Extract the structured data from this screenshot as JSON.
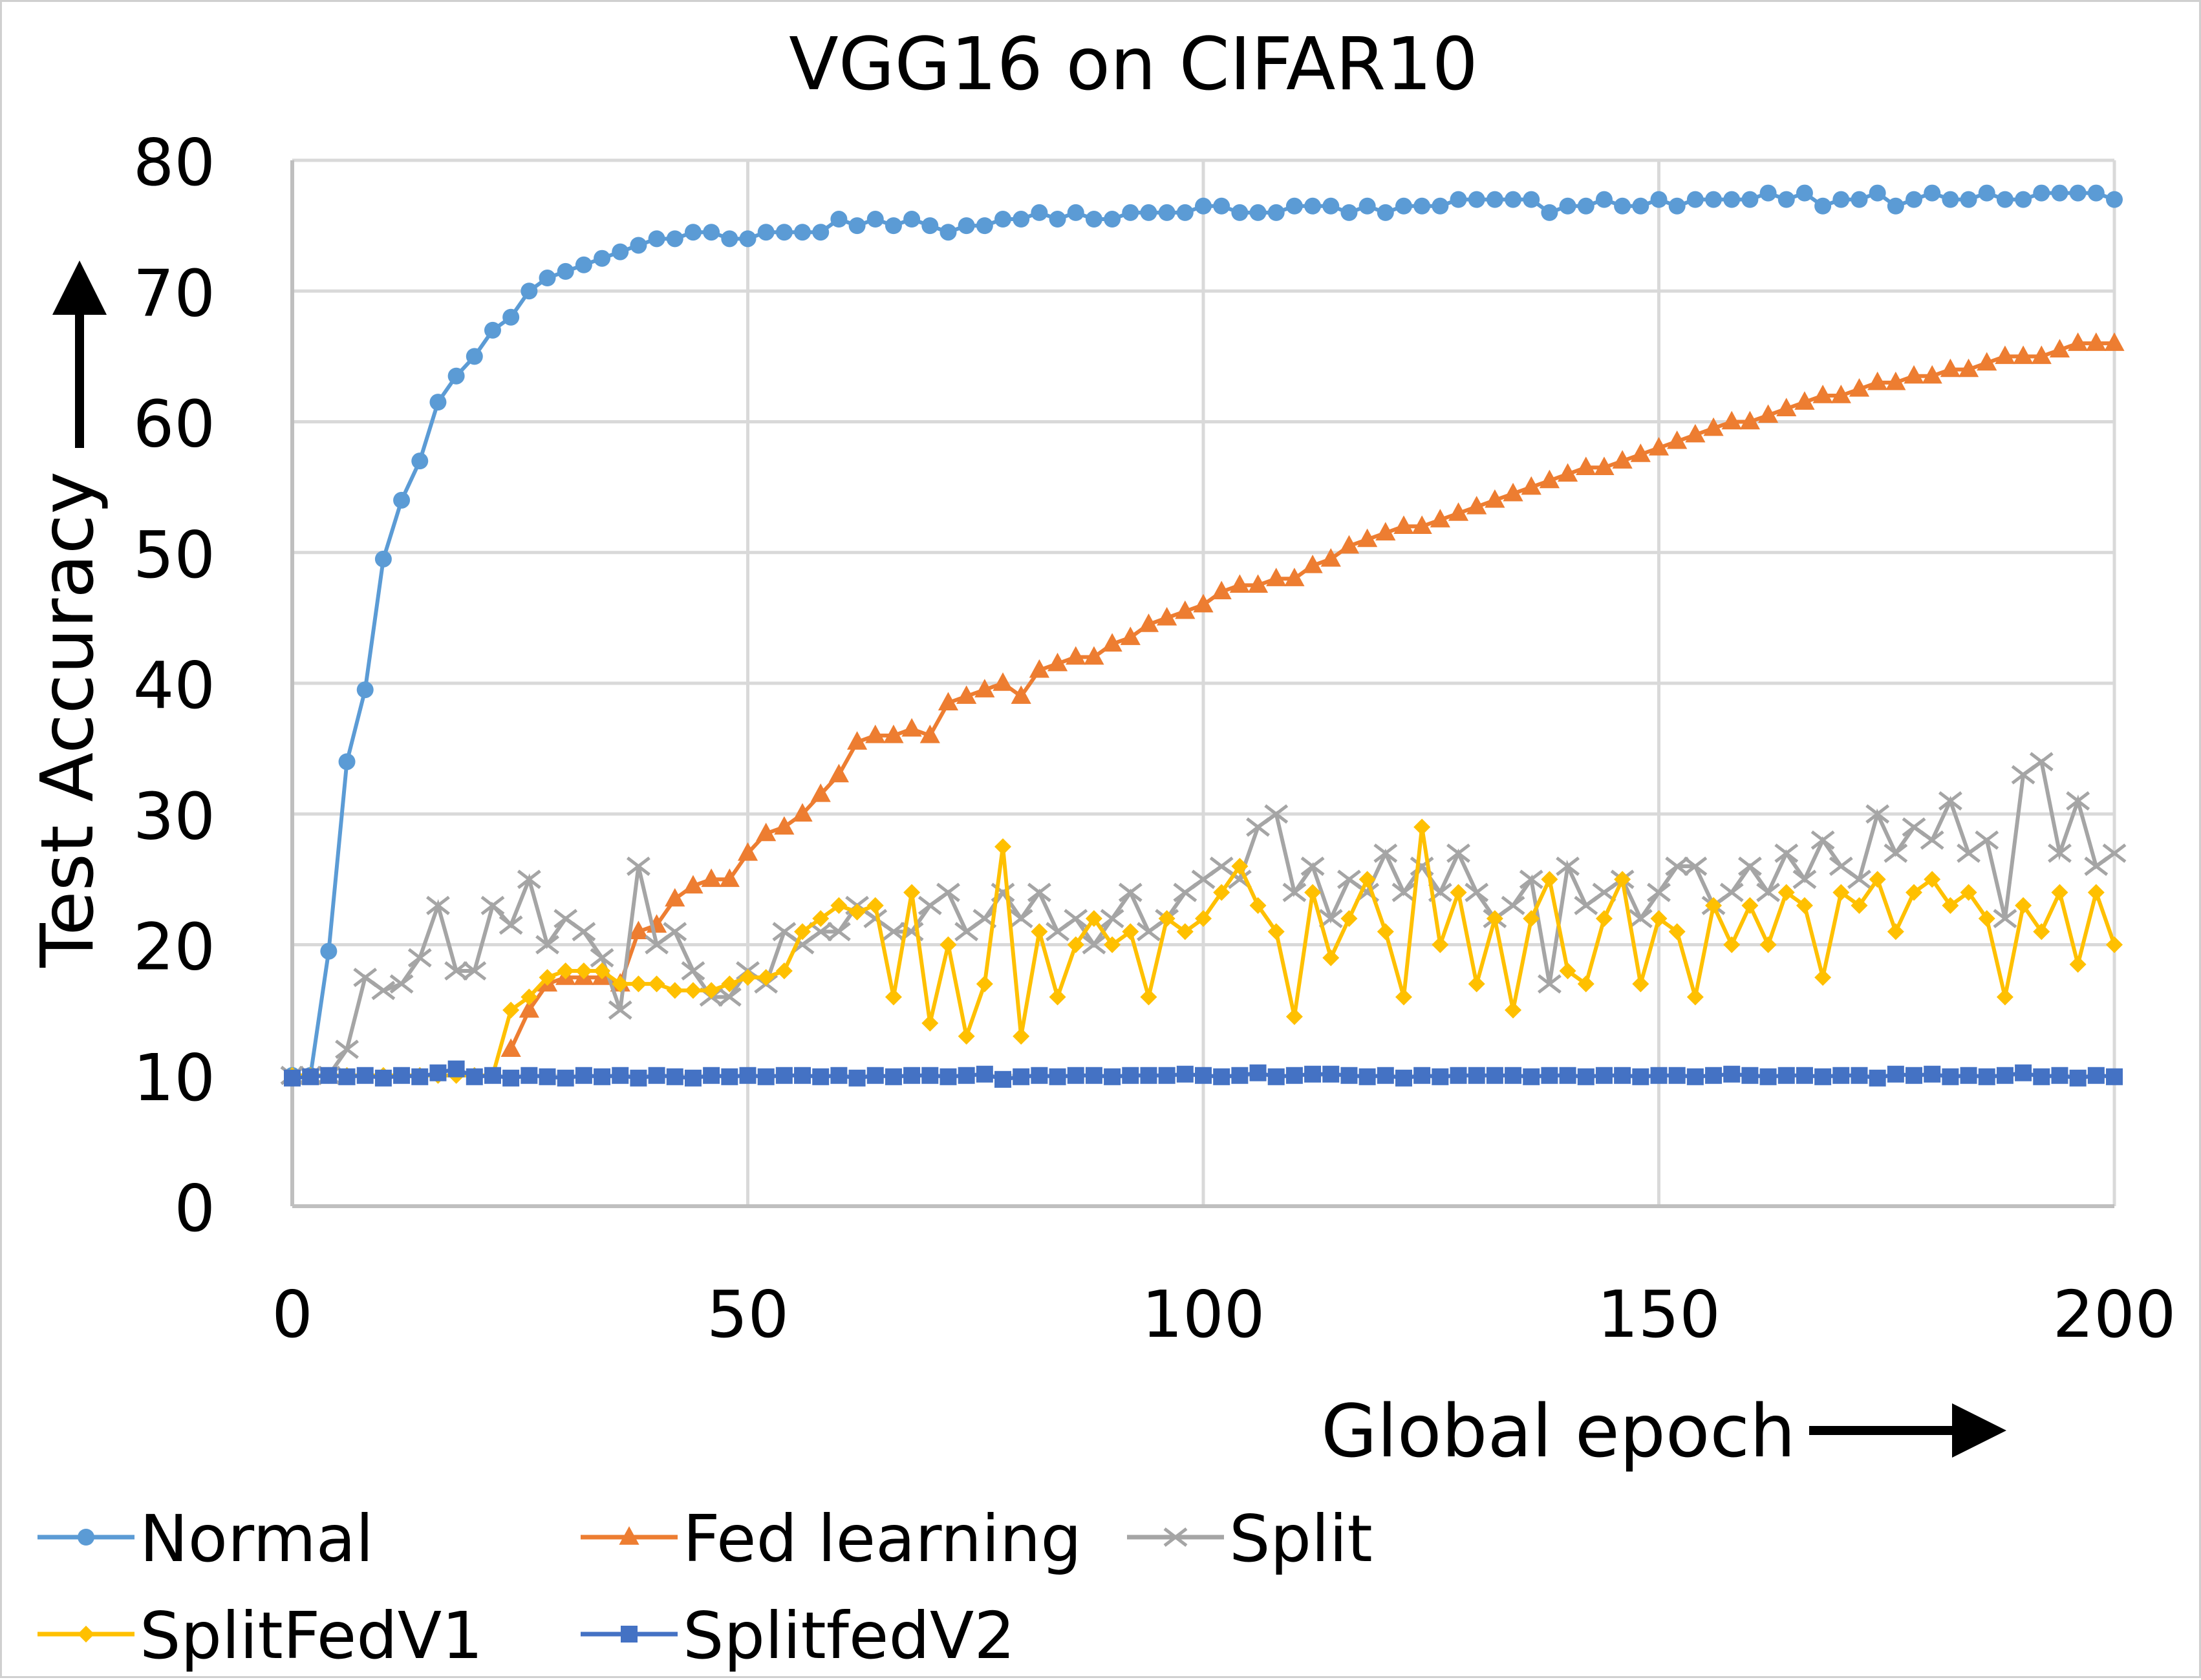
{
  "chart_data": {
    "type": "line",
    "title": "VGG16 on CIFAR10",
    "xlabel": "Global epoch",
    "ylabel": "Test Accuracy",
    "xlim": [
      0,
      200
    ],
    "ylim": [
      0,
      80
    ],
    "xticks": [
      "0",
      "50",
      "100",
      "150",
      "200"
    ],
    "yticks": [
      "0",
      "10",
      "20",
      "30",
      "40",
      "50",
      "60",
      "70",
      "80"
    ],
    "grid": true,
    "legend_position": "bottom",
    "x_step": 2,
    "series": [
      {
        "name": "Normal",
        "color": "#5b9bd5",
        "marker": "circle",
        "values": [
          10,
          10,
          19.5,
          34,
          39.5,
          49.5,
          54,
          57,
          61.5,
          63.5,
          65,
          67,
          68,
          70,
          71,
          71.5,
          72,
          72.5,
          73,
          73.5,
          74,
          74,
          74.5,
          74.5,
          74,
          74,
          74.5,
          74.5,
          74.5,
          74.5,
          75.5,
          75,
          75.5,
          75,
          75.5,
          75,
          74.5,
          75,
          75,
          75.5,
          75.5,
          76,
          75.5,
          76,
          75.5,
          75.5,
          76,
          76,
          76,
          76,
          76.5,
          76.5,
          76,
          76,
          76,
          76.5,
          76.5,
          76.5,
          76,
          76.5,
          76,
          76.5,
          76.5,
          76.5,
          77,
          77,
          77,
          77,
          77,
          76,
          76.5,
          76.5,
          77,
          76.5,
          76.5,
          77,
          76.5,
          77,
          77,
          77,
          77,
          77.5,
          77,
          77.5,
          76.5,
          77,
          77,
          77.5,
          76.5,
          77,
          77.5,
          77,
          77,
          77.5,
          77,
          77,
          77.5,
          77.5,
          77.5,
          77.5,
          77
        ]
      },
      {
        "name": "Fed learning",
        "color": "#ed7d31",
        "marker": "triangle",
        "values": [
          null,
          null,
          null,
          null,
          null,
          null,
          null,
          null,
          null,
          null,
          null,
          null,
          12,
          15,
          17,
          17.5,
          17.5,
          17.5,
          17,
          21,
          21.5,
          23.5,
          24.5,
          25,
          25,
          27,
          28.5,
          29,
          30,
          31.5,
          33,
          35.5,
          36,
          36,
          36.5,
          36,
          38.5,
          39,
          39.5,
          40,
          39,
          41,
          41.5,
          42,
          42,
          43,
          43.5,
          44.5,
          45,
          45.5,
          46,
          47,
          47.5,
          47.5,
          48,
          48,
          49,
          49.5,
          50.5,
          51,
          51.5,
          52,
          52,
          52.5,
          53,
          53.5,
          54,
          54.5,
          55,
          55.5,
          56,
          56.5,
          56.5,
          57,
          57.5,
          58,
          58.5,
          59,
          59.5,
          60,
          60,
          60.5,
          61,
          61.5,
          62,
          62,
          62.5,
          63,
          63,
          63.5,
          63.5,
          64,
          64,
          64.5,
          65,
          65,
          65,
          65.5,
          66,
          66,
          66
        ]
      },
      {
        "name": "Split",
        "color": "#a5a5a5",
        "marker": "x",
        "values": [
          10,
          10,
          10,
          12,
          17.5,
          16.5,
          17,
          19,
          23,
          18,
          18,
          23,
          21.5,
          25,
          20,
          22,
          21,
          19,
          15,
          26,
          20,
          21,
          18,
          16,
          16,
          18,
          17,
          21,
          20,
          21,
          21,
          23,
          22,
          21,
          21,
          23,
          24,
          21,
          22,
          24,
          22,
          24,
          21,
          22,
          20,
          22,
          24,
          21,
          22,
          24,
          25,
          26,
          25,
          29,
          30,
          24,
          26,
          22,
          25,
          24,
          27,
          24,
          26,
          24,
          27,
          24,
          22,
          23,
          25,
          17,
          26,
          23,
          24,
          25,
          22,
          24,
          26,
          26,
          23,
          24,
          26,
          24,
          27,
          25,
          28,
          26,
          25,
          30,
          27,
          29,
          28,
          31,
          27,
          28,
          22,
          33,
          34,
          27,
          31,
          26,
          27
        ]
      },
      {
        "name": "SplitFedV1",
        "color": "#ffc000",
        "marker": "diamond",
        "values": [
          10,
          10,
          10,
          10,
          10,
          10,
          10,
          10,
          10,
          10,
          10,
          10,
          15,
          16,
          17.5,
          18,
          18,
          18,
          17,
          17,
          17,
          16.5,
          16.5,
          16.5,
          17,
          17.5,
          17.5,
          18,
          21,
          22,
          23,
          22.5,
          23,
          16,
          24,
          14,
          20,
          13,
          17,
          27.5,
          13,
          21,
          16,
          20,
          22,
          20,
          21,
          16,
          22,
          21,
          22,
          24,
          26,
          23,
          21,
          14.5,
          24,
          19,
          22,
          25,
          21,
          16,
          29,
          20,
          24,
          17,
          22,
          15,
          22,
          25,
          18,
          17,
          22,
          25,
          17,
          22,
          21,
          16,
          23,
          20,
          23,
          20,
          24,
          23,
          17.5,
          24,
          23,
          25,
          21,
          24,
          25,
          23,
          24,
          22,
          16,
          23,
          21,
          24,
          18.5,
          24,
          20
        ]
      },
      {
        "name": "SplitfedV2",
        "color": "#4472c4",
        "marker": "square",
        "values": [
          9.8,
          9.9,
          10,
          9.9,
          10,
          9.8,
          10,
          9.9,
          10.2,
          10.5,
          9.9,
          10,
          9.8,
          10,
          9.9,
          9.8,
          10,
          9.9,
          10,
          9.8,
          10,
          9.9,
          9.8,
          10,
          9.9,
          10,
          9.9,
          10,
          10,
          9.9,
          10,
          9.8,
          10,
          9.9,
          10,
          10,
          9.9,
          10,
          10.1,
          9.7,
          9.9,
          10,
          9.9,
          10,
          10,
          9.9,
          10,
          10,
          10,
          10.1,
          10,
          9.9,
          10,
          10.2,
          9.9,
          10,
          10.1,
          10.1,
          10,
          9.9,
          10,
          9.8,
          10,
          9.9,
          10,
          10,
          10,
          10,
          9.9,
          10,
          10,
          9.9,
          10,
          10,
          9.9,
          10,
          10,
          9.9,
          10,
          10.1,
          10,
          9.9,
          10,
          10,
          9.9,
          10,
          10,
          9.8,
          10.1,
          10,
          10.1,
          9.9,
          10,
          9.9,
          10,
          10.2,
          9.9,
          10,
          9.8,
          10,
          9.9
        ]
      }
    ]
  }
}
